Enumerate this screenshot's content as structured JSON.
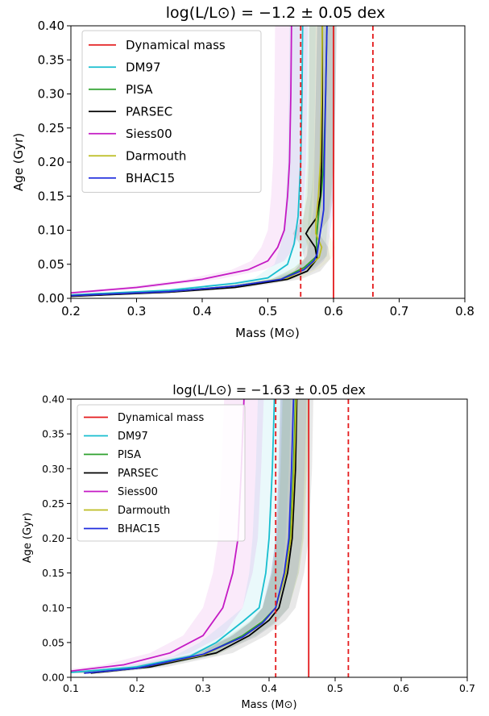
{
  "chart_data": [
    {
      "type": "line",
      "title": "log(L/L⊙) = −1.2 ± 0.05 dex",
      "xlabel": "Mass (M⊙)",
      "ylabel": "Age (Gyr)",
      "xlim": [
        0.2,
        0.8
      ],
      "ylim": [
        0.0,
        0.4
      ],
      "xticks": [
        "0.2",
        "0.3",
        "0.4",
        "0.5",
        "0.6",
        "0.7",
        "0.8"
      ],
      "yticks": [
        "0.00",
        "0.05",
        "0.10",
        "0.15",
        "0.20",
        "0.25",
        "0.30",
        "0.35",
        "0.40"
      ],
      "legend_position": "top-left",
      "grid": false,
      "dynamical_mass": {
        "name": "Dynamical mass",
        "color": "#e41a1c",
        "value": 0.6,
        "lower": 0.55,
        "upper": 0.66
      },
      "series": [
        {
          "name": "DM97",
          "color": "#17becf",
          "band": 0.02,
          "points": [
            [
              0.2,
              0.005
            ],
            [
              0.35,
              0.012
            ],
            [
              0.45,
              0.022
            ],
            [
              0.5,
              0.03
            ],
            [
              0.53,
              0.05
            ],
            [
              0.54,
              0.08
            ],
            [
              0.546,
              0.12
            ],
            [
              0.548,
              0.16
            ],
            [
              0.55,
              0.2
            ],
            [
              0.552,
              0.3
            ],
            [
              0.553,
              0.4
            ]
          ]
        },
        {
          "name": "PISA",
          "color": "#2ca02c",
          "band": 0.015,
          "points": [
            [
              0.2,
              0.004
            ],
            [
              0.35,
              0.01
            ],
            [
              0.45,
              0.018
            ],
            [
              0.52,
              0.028
            ],
            [
              0.555,
              0.045
            ],
            [
              0.57,
              0.058
            ],
            [
              0.575,
              0.062
            ],
            [
              0.574,
              0.085
            ],
            [
              0.575,
              0.1
            ],
            [
              0.578,
              0.13
            ],
            [
              0.582,
              0.16
            ],
            [
              0.585,
              0.2
            ],
            [
              0.588,
              0.3
            ],
            [
              0.59,
              0.4
            ]
          ]
        },
        {
          "name": "PARSEC",
          "color": "#000000",
          "band": 0.02,
          "points": [
            [
              0.2,
              0.003
            ],
            [
              0.35,
              0.009
            ],
            [
              0.45,
              0.016
            ],
            [
              0.53,
              0.028
            ],
            [
              0.56,
              0.04
            ],
            [
              0.575,
              0.058
            ],
            [
              0.572,
              0.075
            ],
            [
              0.558,
              0.095
            ],
            [
              0.562,
              0.102
            ],
            [
              0.574,
              0.118
            ],
            [
              0.58,
              0.15
            ],
            [
              0.582,
              0.2
            ],
            [
              0.583,
              0.3
            ],
            [
              0.583,
              0.4
            ]
          ]
        },
        {
          "name": "Siess00",
          "color": "#c41ac4",
          "band": 0.025,
          "points": [
            [
              0.2,
              0.008
            ],
            [
              0.3,
              0.016
            ],
            [
              0.4,
              0.028
            ],
            [
              0.47,
              0.042
            ],
            [
              0.5,
              0.055
            ],
            [
              0.515,
              0.075
            ],
            [
              0.525,
              0.1
            ],
            [
              0.53,
              0.15
            ],
            [
              0.533,
              0.2
            ],
            [
              0.535,
              0.3
            ],
            [
              0.536,
              0.4
            ]
          ]
        },
        {
          "name": "Darmouth",
          "color": "#bcbd22",
          "band": 0.02,
          "points": [
            [
              0.2,
              0.004
            ],
            [
              0.35,
              0.01
            ],
            [
              0.45,
              0.018
            ],
            [
              0.53,
              0.03
            ],
            [
              0.56,
              0.045
            ],
            [
              0.578,
              0.06
            ],
            [
              0.582,
              0.075
            ],
            [
              0.573,
              0.095
            ],
            [
              0.573,
              0.11
            ],
            [
              0.577,
              0.15
            ],
            [
              0.58,
              0.2
            ],
            [
              0.582,
              0.3
            ],
            [
              0.583,
              0.4
            ]
          ]
        },
        {
          "name": "BHAC15",
          "color": "#1f2cde",
          "band": 0.015,
          "points": [
            [
              0.2,
              0.004
            ],
            [
              0.35,
              0.01
            ],
            [
              0.45,
              0.018
            ],
            [
              0.52,
              0.028
            ],
            [
              0.555,
              0.042
            ],
            [
              0.57,
              0.055
            ],
            [
              0.575,
              0.065
            ],
            [
              0.578,
              0.085
            ],
            [
              0.582,
              0.11
            ],
            [
              0.585,
              0.13
            ],
            [
              0.586,
              0.2
            ],
            [
              0.588,
              0.3
            ],
            [
              0.59,
              0.4
            ]
          ]
        }
      ]
    },
    {
      "type": "line",
      "title": "log(L/L⊙) = −1.63 ± 0.05 dex",
      "xlabel": "Mass (M⊙)",
      "ylabel": "Age (Gyr)",
      "xlim": [
        0.1,
        0.7
      ],
      "ylim": [
        0.0,
        0.4
      ],
      "xticks": [
        "0.1",
        "0.2",
        "0.3",
        "0.4",
        "0.5",
        "0.6",
        "0.7"
      ],
      "yticks": [
        "0.00",
        "0.05",
        "0.10",
        "0.15",
        "0.20",
        "0.25",
        "0.30",
        "0.35",
        "0.40"
      ],
      "legend_position": "top-left",
      "grid": false,
      "dynamical_mass": {
        "name": "Dynamical mass",
        "color": "#e41a1c",
        "value": 0.46,
        "lower": 0.41,
        "upper": 0.52
      },
      "series": [
        {
          "name": "DM97",
          "color": "#17becf",
          "band": 0.025,
          "points": [
            [
              0.1,
              0.007
            ],
            [
              0.2,
              0.015
            ],
            [
              0.28,
              0.03
            ],
            [
              0.32,
              0.05
            ],
            [
              0.36,
              0.08
            ],
            [
              0.385,
              0.1
            ],
            [
              0.395,
              0.15
            ],
            [
              0.4,
              0.2
            ],
            [
              0.405,
              0.3
            ],
            [
              0.408,
              0.4
            ]
          ]
        },
        {
          "name": "PISA",
          "color": "#2ca02c",
          "band": 0.02,
          "points": [
            [
              0.12,
              0.006
            ],
            [
              0.2,
              0.013
            ],
            [
              0.3,
              0.032
            ],
            [
              0.36,
              0.06
            ],
            [
              0.39,
              0.08
            ],
            [
              0.41,
              0.1
            ],
            [
              0.425,
              0.15
            ],
            [
              0.432,
              0.2
            ],
            [
              0.437,
              0.3
            ],
            [
              0.44,
              0.4
            ]
          ]
        },
        {
          "name": "PARSEC",
          "color": "#000000",
          "band": 0.025,
          "points": [
            [
              0.13,
              0.006
            ],
            [
              0.22,
              0.015
            ],
            [
              0.32,
              0.035
            ],
            [
              0.37,
              0.06
            ],
            [
              0.4,
              0.082
            ],
            [
              0.415,
              0.1
            ],
            [
              0.428,
              0.15
            ],
            [
              0.435,
              0.2
            ],
            [
              0.44,
              0.3
            ],
            [
              0.442,
              0.4
            ]
          ]
        },
        {
          "name": "Siess00",
          "color": "#c41ac4",
          "band": 0.03,
          "points": [
            [
              0.1,
              0.009
            ],
            [
              0.18,
              0.018
            ],
            [
              0.25,
              0.035
            ],
            [
              0.3,
              0.06
            ],
            [
              0.33,
              0.1
            ],
            [
              0.345,
              0.15
            ],
            [
              0.353,
              0.2
            ],
            [
              0.358,
              0.3
            ],
            [
              0.362,
              0.4
            ]
          ]
        },
        {
          "name": "Darmouth",
          "color": "#bcbd22",
          "band": 0.02,
          "points": [
            [
              0.12,
              0.006
            ],
            [
              0.2,
              0.013
            ],
            [
              0.3,
              0.032
            ],
            [
              0.36,
              0.058
            ],
            [
              0.39,
              0.078
            ],
            [
              0.41,
              0.1
            ],
            [
              0.425,
              0.15
            ],
            [
              0.433,
              0.2
            ],
            [
              0.438,
              0.3
            ],
            [
              0.441,
              0.4
            ]
          ]
        },
        {
          "name": "BHAC15",
          "color": "#1f2cde",
          "band": 0.02,
          "points": [
            [
              0.12,
              0.006
            ],
            [
              0.2,
              0.013
            ],
            [
              0.3,
              0.033
            ],
            [
              0.36,
              0.058
            ],
            [
              0.39,
              0.078
            ],
            [
              0.41,
              0.1
            ],
            [
              0.423,
              0.15
            ],
            [
              0.43,
              0.2
            ],
            [
              0.434,
              0.3
            ],
            [
              0.437,
              0.4
            ]
          ]
        }
      ]
    }
  ]
}
